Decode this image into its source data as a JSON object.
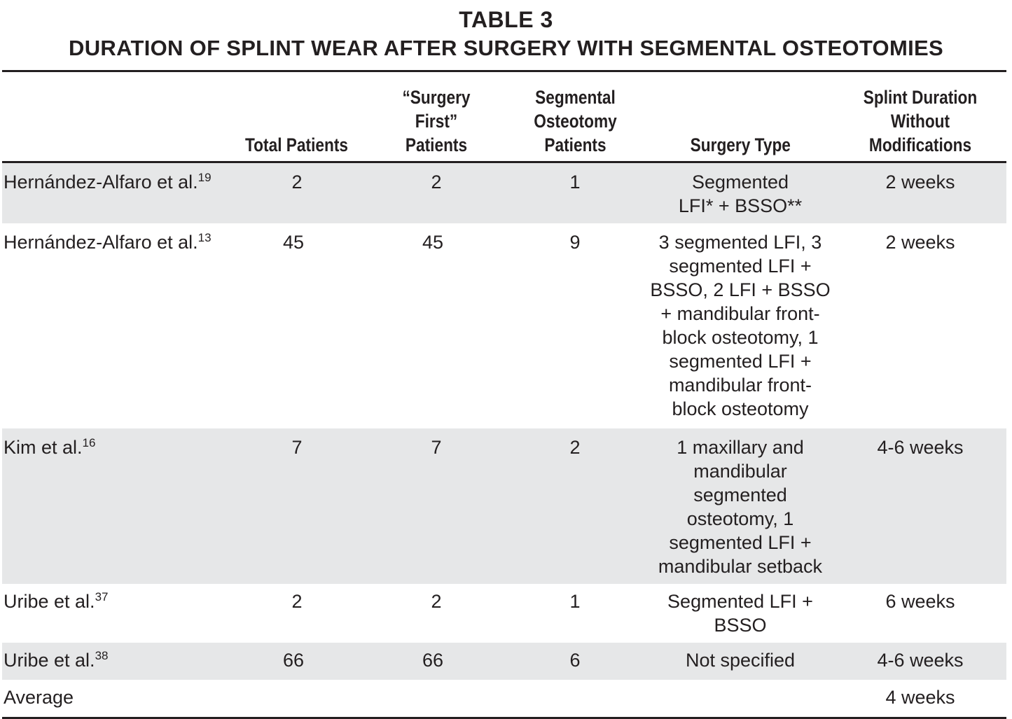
{
  "title": {
    "line1": "TABLE 3",
    "line2": "DURATION OF SPLINT WEAR AFTER SURGERY WITH SEGMENTAL OSTEOTOMIES"
  },
  "columns": [
    "",
    "Total Patients",
    "“Surgery First” Patients",
    "Segmental Osteotomy Patients",
    "Surgery Type",
    "Splint Duration Without Modifications"
  ],
  "rows": [
    {
      "study": "Hernández-Alfaro et al.",
      "ref": "19",
      "total": "2",
      "surgery_first": "2",
      "segmental": "1",
      "surgery_type": "Segmented LFI* + BSSO**",
      "splint_duration": "2 weeks"
    },
    {
      "study": "Hernández-Alfaro et al.",
      "ref": "13",
      "total": "45",
      "surgery_first": "45",
      "segmental": "9",
      "surgery_type": "3 segmented LFI, 3 segmented LFI + BSSO, 2 LFI + BSSO + mandibular front-block osteotomy, 1 segmented LFI + mandibular front-block osteotomy",
      "splint_duration": "2 weeks"
    },
    {
      "study": "Kim et al.",
      "ref": "16",
      "total": "7",
      "surgery_first": "7",
      "segmental": "2",
      "surgery_type": "1 maxillary and mandibular segmented osteotomy, 1 segmented LFI + mandibular setback",
      "splint_duration": "4-6 weeks"
    },
    {
      "study": "Uribe et al.",
      "ref": "37",
      "total": "2",
      "surgery_first": "2",
      "segmental": "1",
      "surgery_type": "Segmented LFI + BSSO",
      "splint_duration": "6 weeks"
    },
    {
      "study": "Uribe et al.",
      "ref": "38",
      "total": "66",
      "surgery_first": "66",
      "segmental": "6",
      "surgery_type": "Not specified",
      "splint_duration": "4-6 weeks"
    },
    {
      "study": "Average",
      "ref": "",
      "total": "",
      "surgery_first": "",
      "segmental": "",
      "surgery_type": "",
      "splint_duration": "4 weeks"
    }
  ],
  "colors": {
    "text": "#231f20",
    "row_shade": "#e6e7e8",
    "rule": "#231f20"
  }
}
